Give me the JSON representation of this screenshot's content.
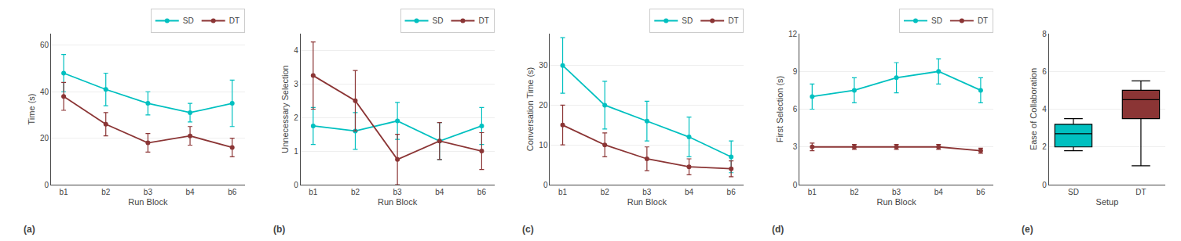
{
  "chart_data": [
    {
      "type": "line",
      "categories": [
        "b1",
        "b2",
        "b3",
        "b4",
        "b6"
      ],
      "xlabel": "Run Block",
      "ylabel": "Time (s)",
      "ylim": [
        0,
        65
      ],
      "yticks": [
        0,
        20,
        40,
        60
      ],
      "grid": true,
      "legend": "upper right",
      "marker": "circle",
      "annotations": [
        "(a)"
      ],
      "series": [
        {
          "name": "SD",
          "color": "#00C0C0",
          "values": [
            48,
            41,
            35,
            31,
            35
          ],
          "errors": [
            8,
            7,
            5,
            4,
            10
          ]
        },
        {
          "name": "DT",
          "color": "#8B3535",
          "values": [
            38,
            26,
            18,
            21,
            16
          ],
          "errors": [
            6,
            5,
            4,
            4,
            4
          ]
        }
      ]
    },
    {
      "type": "line",
      "categories": [
        "b1",
        "b2",
        "b3",
        "b4",
        "b6"
      ],
      "xlabel": "Run Block",
      "ylabel": "Unnecessary Selection",
      "ylim": [
        0,
        4.5
      ],
      "yticks": [
        0,
        1,
        2,
        3,
        4
      ],
      "grid": true,
      "legend": "upper right",
      "marker": "circle",
      "annotations": [
        "(b)"
      ],
      "series": [
        {
          "name": "SD",
          "color": "#00C0C0",
          "values": [
            1.75,
            1.6,
            1.9,
            1.3,
            1.75
          ],
          "errors": [
            0.55,
            0.55,
            0.55,
            0.55,
            0.55
          ]
        },
        {
          "name": "DT",
          "color": "#8B3535",
          "values": [
            3.25,
            2.5,
            0.75,
            1.3,
            1.0
          ],
          "errors": [
            1.0,
            0.9,
            0.75,
            0.55,
            0.55
          ]
        }
      ]
    },
    {
      "type": "line",
      "categories": [
        "b1",
        "b2",
        "b3",
        "b4",
        "b6"
      ],
      "xlabel": "Run Block",
      "ylabel": "Conversation Time (s)",
      "ylim": [
        0,
        38
      ],
      "yticks": [
        0,
        10,
        20,
        30
      ],
      "grid": true,
      "legend": "upper right",
      "marker": "circle",
      "annotations": [
        "(c)"
      ],
      "series": [
        {
          "name": "SD",
          "color": "#00C0C0",
          "values": [
            30,
            20,
            16,
            12,
            7
          ],
          "errors": [
            7,
            6,
            5,
            5,
            4
          ]
        },
        {
          "name": "DT",
          "color": "#8B3535",
          "values": [
            15,
            10,
            6.5,
            4.5,
            4
          ],
          "errors": [
            5,
            3,
            3,
            2,
            2
          ]
        }
      ]
    },
    {
      "type": "line",
      "categories": [
        "b1",
        "b2",
        "b3",
        "b4",
        "b6"
      ],
      "xlabel": "Run Block",
      "ylabel": "First Selection (s)",
      "ylim": [
        0,
        12
      ],
      "yticks": [
        0,
        3,
        6,
        9,
        12
      ],
      "grid": true,
      "legend": "upper right",
      "marker": "circle",
      "annotations": [
        "(d)"
      ],
      "series": [
        {
          "name": "SD",
          "color": "#00C0C0",
          "values": [
            7.0,
            7.5,
            8.5,
            9.0,
            7.5
          ],
          "errors": [
            1.0,
            1.0,
            1.2,
            1.0,
            1.0
          ]
        },
        {
          "name": "DT",
          "color": "#8B3535",
          "values": [
            3.0,
            3.0,
            3.0,
            3.0,
            2.7
          ],
          "errors": [
            0.3,
            0.2,
            0.2,
            0.2,
            0.2
          ]
        }
      ]
    },
    {
      "type": "box",
      "categories": [
        "SD",
        "DT"
      ],
      "xlabel": "Setup",
      "ylabel": "Ease of Collaboration",
      "ylim": [
        0,
        8
      ],
      "yticks": [
        0,
        2,
        4,
        6,
        8
      ],
      "grid": true,
      "annotations": [
        "(e)"
      ],
      "series": [
        {
          "name": "SD",
          "color": "#00C0C0",
          "whislo": 1.8,
          "q1": 2.0,
          "median": 2.7,
          "q3": 3.2,
          "whishi": 3.5
        },
        {
          "name": "DT",
          "color": "#8B3535",
          "whislo": 1.0,
          "q1": 3.5,
          "median": 4.5,
          "q3": 5.0,
          "whishi": 5.5
        }
      ]
    }
  ]
}
